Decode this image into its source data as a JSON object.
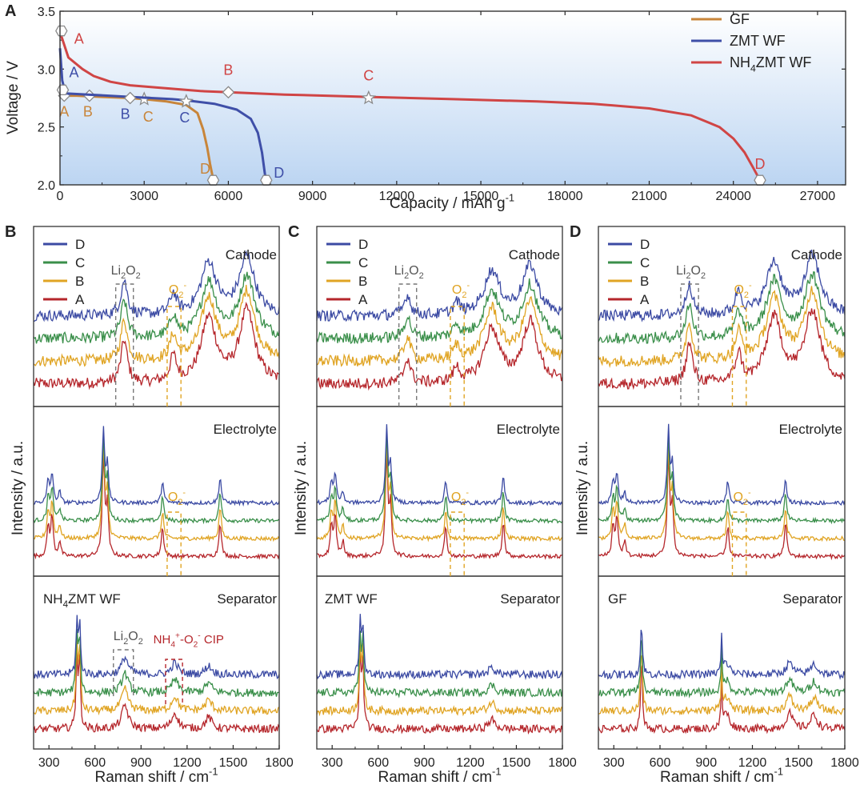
{
  "chart_data": [
    {
      "panel": "A",
      "type": "line",
      "xlabel": "Capacity / mAh g-1",
      "ylabel": "Voltage / V",
      "xlim": [
        0,
        28000
      ],
      "ylim": [
        2.0,
        3.5
      ],
      "xticks": [
        0,
        3000,
        6000,
        9000,
        12000,
        15000,
        18000,
        21000,
        24000,
        27000
      ],
      "yticks": [
        2.0,
        2.5,
        3.0,
        3.5
      ],
      "legend": "top-right",
      "series": [
        {
          "name": "GF",
          "color": "#c8853a",
          "x": [
            0,
            150,
            600,
            1500,
            2500,
            3000,
            3800,
            4500,
            4900,
            5100,
            5250,
            5350,
            5450,
            5480
          ],
          "y": [
            2.78,
            2.77,
            2.77,
            2.76,
            2.75,
            2.74,
            2.72,
            2.69,
            2.62,
            2.48,
            2.32,
            2.18,
            2.06,
            2.04
          ],
          "markers": [
            {
              "label": "A",
              "x": 150,
              "y": 2.77,
              "shape": "diamond"
            },
            {
              "label": "B",
              "x": 1050,
              "y": 2.77,
              "shape": "diamond"
            },
            {
              "label": "C",
              "x": 3000,
              "y": 2.74,
              "shape": "star"
            },
            {
              "label": "D",
              "x": 5460,
              "y": 2.04,
              "shape": "hexagon"
            }
          ]
        },
        {
          "name": "ZMT WF",
          "color": "#3f4fa8",
          "x": [
            0,
            80,
            200,
            1000,
            2500,
            4000,
            4500,
            5500,
            6300,
            6800,
            7050,
            7200,
            7300,
            7350
          ],
          "y": [
            3.18,
            2.9,
            2.79,
            2.78,
            2.76,
            2.74,
            2.73,
            2.7,
            2.65,
            2.57,
            2.45,
            2.28,
            2.1,
            2.04
          ],
          "markers": [
            {
              "label": "A",
              "x": 100,
              "y": 2.82,
              "shape": "hexagon"
            },
            {
              "label": "B",
              "x": 2500,
              "y": 2.75,
              "shape": "diamond"
            },
            {
              "label": "C",
              "x": 4500,
              "y": 2.72,
              "shape": "star"
            },
            {
              "label": "D",
              "x": 7350,
              "y": 2.04,
              "shape": "hexagon"
            }
          ]
        },
        {
          "name": "NH4ZMT WF",
          "color": "#d04545",
          "x": [
            0,
            300,
            800,
            1200,
            1800,
            2500,
            3500,
            5000,
            6000,
            8000,
            11000,
            14000,
            17000,
            19000,
            21000,
            22500,
            23500,
            24000,
            24400,
            24700,
            24950
          ],
          "y": [
            3.32,
            3.1,
            3.0,
            2.94,
            2.89,
            2.86,
            2.84,
            2.81,
            2.8,
            2.78,
            2.76,
            2.74,
            2.72,
            2.7,
            2.66,
            2.6,
            2.5,
            2.4,
            2.28,
            2.15,
            2.04
          ],
          "markers": [
            {
              "label": "A",
              "x": 50,
              "y": 3.33,
              "shape": "hexagon"
            },
            {
              "label": "B",
              "x": 6000,
              "y": 2.8,
              "shape": "diamond"
            },
            {
              "label": "C",
              "x": 11000,
              "y": 2.75,
              "shape": "star"
            },
            {
              "label": "D",
              "x": 24950,
              "y": 2.04,
              "shape": "hexagon"
            }
          ]
        }
      ],
      "labels": {
        "panel": "A",
        "x_prefix": "Capacity / mAh g",
        "x_sup": "-1",
        "y": "Voltage / V"
      },
      "legend_labels": [
        {
          "text": "GF",
          "color": "#c8853a"
        },
        {
          "text": "ZMT WF",
          "color": "#3f4fa8"
        },
        {
          "parts": [
            "NH",
            "4",
            "ZMT WF"
          ],
          "color": "#d04545"
        }
      ]
    },
    {
      "panel": "B",
      "type": "line",
      "xlabel": "Raman shift / cm-1",
      "ylabel": "Intensity / a.u.",
      "xlim": [
        200,
        1800
      ],
      "xticks": [
        300,
        600,
        900,
        1200,
        1500,
        1800
      ],
      "material": "NH4ZMT WF",
      "subpanels": [
        "Cathode",
        "Electrolyte",
        "Separator"
      ],
      "series": [
        "D",
        "C",
        "B",
        "A"
      ],
      "cathode_peaks": [
        {
          "x": 790,
          "h": 0.6
        },
        {
          "x": 1110,
          "h": 0.35
        },
        {
          "x": 1340,
          "h": 0.9
        },
        {
          "x": 1590,
          "h": 1.0
        }
      ],
      "separator_peaks": [
        {
          "x": 482,
          "h": 0.9
        },
        {
          "x": 500,
          "h": 0.85
        },
        {
          "x": 795,
          "h": 0.3
        },
        {
          "x": 1120,
          "h": 0.2
        },
        {
          "x": 1340,
          "h": 0.15
        }
      ]
    },
    {
      "panel": "C",
      "type": "line",
      "xlabel": "Raman shift / cm-1",
      "ylabel": "Intensity / a.u.",
      "xlim": [
        200,
        1800
      ],
      "xticks": [
        300,
        600,
        900,
        1200,
        1500,
        1800
      ],
      "material": "ZMT WF",
      "subpanels": [
        "Cathode",
        "Electrolyte",
        "Separator"
      ],
      "series": [
        "D",
        "C",
        "B",
        "A"
      ],
      "cathode_peaks": [
        {
          "x": 790,
          "h": 0.35
        },
        {
          "x": 1110,
          "h": 0.2
        },
        {
          "x": 1340,
          "h": 0.75
        },
        {
          "x": 1590,
          "h": 0.85
        }
      ],
      "separator_peaks": [
        {
          "x": 482,
          "h": 0.9
        },
        {
          "x": 500,
          "h": 0.85
        },
        {
          "x": 1340,
          "h": 0.12
        }
      ]
    },
    {
      "panel": "D",
      "type": "line",
      "xlabel": "Raman shift / cm-1",
      "ylabel": "Intensity / a.u.",
      "xlim": [
        200,
        1800
      ],
      "xticks": [
        300,
        600,
        900,
        1200,
        1500,
        1800
      ],
      "material": "GF",
      "subpanels": [
        "Cathode",
        "Electrolyte",
        "Separator"
      ],
      "series": [
        "D",
        "C",
        "B",
        "A"
      ],
      "cathode_peaks": [
        {
          "x": 790,
          "h": 0.55
        },
        {
          "x": 1110,
          "h": 0.4
        },
        {
          "x": 1340,
          "h": 0.9
        },
        {
          "x": 1590,
          "h": 1.0
        }
      ],
      "separator_peaks": [
        {
          "x": 480,
          "h": 0.9
        },
        {
          "x": 1000,
          "h": 0.6
        },
        {
          "x": 1030,
          "h": 0.2
        },
        {
          "x": 1440,
          "h": 0.2
        },
        {
          "x": 1600,
          "h": 0.18
        }
      ]
    }
  ],
  "raman_common": {
    "series_colors": {
      "D": "#3b4aa3",
      "C": "#3a8f4a",
      "B": "#e0a423",
      "A": "#b5262b"
    },
    "electrolyte_peaks": [
      {
        "x": 295,
        "h": 0.3
      },
      {
        "x": 320,
        "h": 0.4
      },
      {
        "x": 370,
        "h": 0.15
      },
      {
        "x": 655,
        "h": 1.0
      },
      {
        "x": 680,
        "h": 0.5
      },
      {
        "x": 1040,
        "h": 0.3
      },
      {
        "x": 1415,
        "h": 0.35
      }
    ],
    "text": {
      "xlabel_prefix": "Raman shift / cm",
      "xlabel_sup": "-1",
      "ylabel": "Intensity / a.u.",
      "cathode": "Cathode",
      "electrolyte": "Electrolyte",
      "separator": "Separator",
      "li2o2_parts": [
        "Li",
        "2",
        "O",
        "2"
      ],
      "o2_parts": [
        "O",
        "2",
        "-"
      ],
      "cip_parts": [
        "NH",
        "4",
        "+",
        "-O",
        "2",
        "-",
        " CIP"
      ],
      "nh4zmt_parts": [
        "NH",
        "4",
        "ZMT WF"
      ],
      "zmt": "ZMT WF",
      "gf": "GF",
      "legend_labels": [
        "D",
        "C",
        "B",
        "A"
      ]
    }
  }
}
